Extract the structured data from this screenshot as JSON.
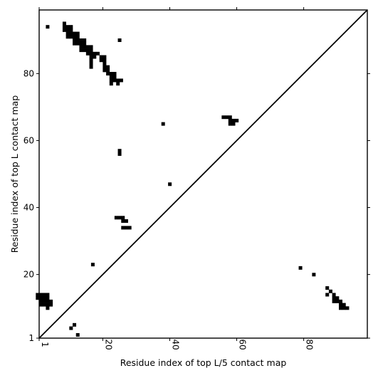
{
  "chart_data": {
    "type": "heatmap",
    "xlabel": "Residue index of top L/5 contact map",
    "ylabel": "Residue index of top L contact map",
    "xlim": [
      1,
      99
    ],
    "ylim": [
      1,
      99
    ],
    "xticks": [
      1,
      20,
      40,
      60,
      80
    ],
    "yticks": [
      1,
      20,
      40,
      60,
      80
    ],
    "diagonal": true,
    "color": "#000000",
    "upper_contacts": [
      [
        3.5,
        94
      ],
      [
        3.5,
        10
      ],
      [
        25,
        90
      ],
      [
        38,
        65
      ],
      [
        40,
        47
      ],
      [
        25,
        57
      ],
      [
        25,
        56
      ],
      [
        17,
        23
      ],
      [
        24,
        37
      ],
      [
        25,
        37
      ],
      [
        26,
        37
      ],
      [
        26,
        36
      ],
      [
        27,
        36
      ],
      [
        26,
        34
      ],
      [
        27,
        34
      ],
      [
        28,
        34
      ],
      [
        56,
        67
      ],
      [
        57,
        67
      ],
      [
        58,
        67
      ],
      [
        58,
        66
      ],
      [
        59,
        66
      ],
      [
        60,
        66
      ],
      [
        58,
        65
      ],
      [
        59,
        65
      ],
      [
        8.5,
        95
      ],
      [
        8.5,
        94
      ],
      [
        8.5,
        93
      ],
      [
        9.5,
        94
      ],
      [
        9.5,
        93
      ],
      [
        9.5,
        92
      ],
      [
        10.5,
        94
      ],
      [
        10.5,
        93
      ],
      [
        10.5,
        92
      ],
      [
        10.5,
        91
      ],
      [
        9.5,
        91
      ],
      [
        11.5,
        92
      ],
      [
        11.5,
        91
      ],
      [
        12.5,
        92
      ],
      [
        12.5,
        91
      ],
      [
        11.5,
        90
      ],
      [
        12.5,
        90
      ],
      [
        11.5,
        89
      ],
      [
        12.5,
        89
      ],
      [
        13.5,
        90
      ],
      [
        13.5,
        89
      ],
      [
        13.5,
        88
      ],
      [
        13.5,
        87
      ],
      [
        14.5,
        90
      ],
      [
        14.5,
        89
      ],
      [
        14.5,
        88
      ],
      [
        14.5,
        87
      ],
      [
        15.5,
        88
      ],
      [
        15.5,
        87
      ],
      [
        16.5,
        88
      ],
      [
        16.5,
        87
      ],
      [
        15.5,
        86
      ],
      [
        16.5,
        86
      ],
      [
        16.5,
        85
      ],
      [
        17.5,
        86
      ],
      [
        17.5,
        85
      ],
      [
        16.5,
        84
      ],
      [
        16.5,
        83
      ],
      [
        16.5,
        82
      ],
      [
        18.5,
        86
      ],
      [
        19.5,
        85
      ],
      [
        20.5,
        85
      ],
      [
        19.5,
        84
      ],
      [
        20.5,
        84
      ],
      [
        20.5,
        83
      ],
      [
        20.5,
        82
      ],
      [
        21.5,
        82
      ],
      [
        20.5,
        81
      ],
      [
        21.5,
        81
      ],
      [
        21.5,
        80
      ],
      [
        22.5,
        80
      ],
      [
        23.5,
        80
      ],
      [
        22.5,
        79
      ],
      [
        23.5,
        79
      ],
      [
        22.5,
        78
      ],
      [
        23.5,
        78
      ],
      [
        24.5,
        78
      ],
      [
        25.5,
        78
      ],
      [
        22.5,
        77
      ],
      [
        24.5,
        77
      ]
    ],
    "lower_contacts": [
      [
        0.5,
        14
      ],
      [
        1.5,
        14
      ],
      [
        2.5,
        14
      ],
      [
        3.5,
        14
      ],
      [
        0.5,
        13
      ],
      [
        1.5,
        13
      ],
      [
        2.5,
        13
      ],
      [
        3.5,
        13
      ],
      [
        1.5,
        12
      ],
      [
        2.5,
        12
      ],
      [
        3.5,
        12
      ],
      [
        4.5,
        12
      ],
      [
        1.5,
        11
      ],
      [
        2.5,
        11
      ],
      [
        3.5,
        11
      ],
      [
        4.5,
        11
      ],
      [
        11.5,
        5
      ],
      [
        10.5,
        4
      ],
      [
        12.5,
        2
      ],
      [
        79,
        22
      ],
      [
        83,
        20
      ],
      [
        87,
        16
      ],
      [
        88,
        15
      ],
      [
        87,
        14
      ],
      [
        89,
        14
      ],
      [
        89,
        13
      ],
      [
        90,
        13
      ],
      [
        89,
        12
      ],
      [
        90,
        12
      ],
      [
        91,
        12
      ],
      [
        91,
        11
      ],
      [
        92,
        11
      ],
      [
        91,
        10
      ],
      [
        92,
        10
      ],
      [
        93,
        10
      ]
    ]
  }
}
